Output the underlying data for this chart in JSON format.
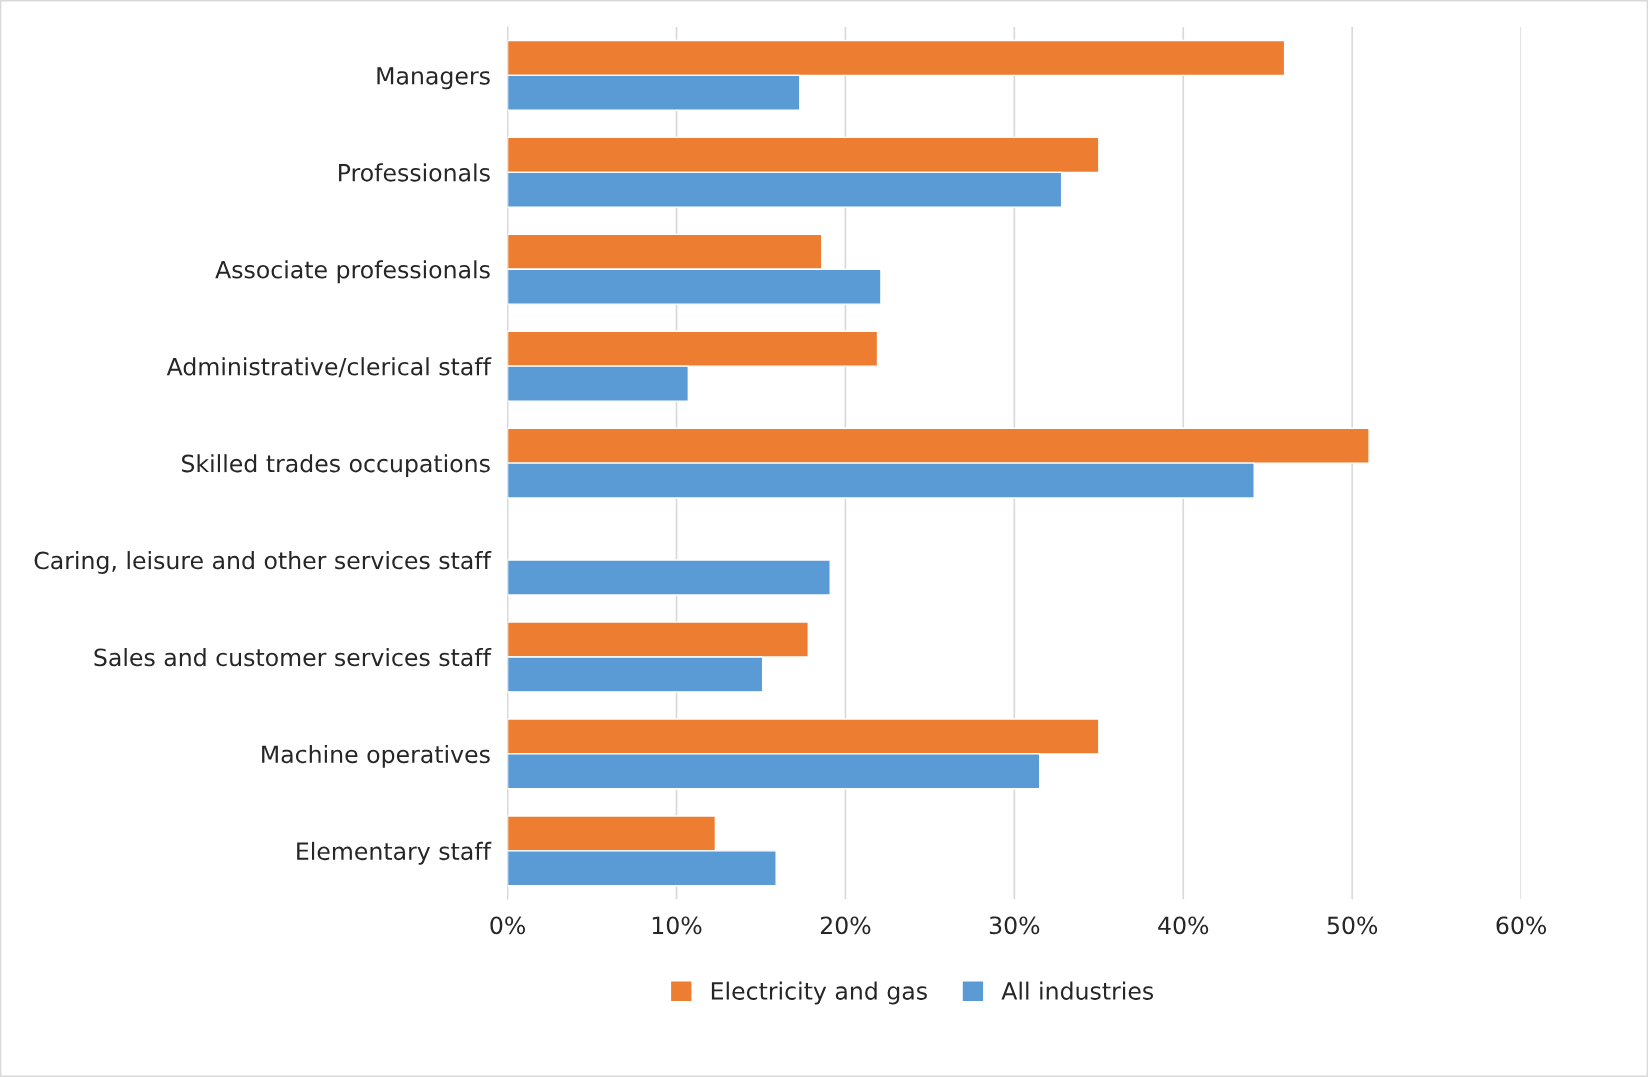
{
  "chart_data": {
    "type": "bar",
    "orientation": "horizontal",
    "categories": [
      "Managers",
      "Professionals",
      "Associate professionals",
      "Administrative/clerical staff",
      "Skilled trades occupations",
      "Caring, leisure and other services staff",
      "Sales and customer services staff",
      "Machine operatives",
      "Elementary staff"
    ],
    "series": [
      {
        "name": "Electricity and gas",
        "color": "#ed7d31",
        "values": [
          46,
          35,
          18.6,
          21.9,
          51,
          null,
          17.8,
          35,
          12.3
        ]
      },
      {
        "name": "All industries",
        "color": "#5b9bd5",
        "values": [
          17.3,
          32.8,
          22.1,
          10.7,
          44.2,
          19.1,
          15.1,
          31.5,
          15.9
        ]
      }
    ],
    "xlim": [
      0,
      60
    ],
    "xticks": [
      {
        "value": 0,
        "label": "0%"
      },
      {
        "value": 10,
        "label": "10%"
      },
      {
        "value": 20,
        "label": "20%"
      },
      {
        "value": 30,
        "label": "30%"
      },
      {
        "value": 40,
        "label": "40%"
      },
      {
        "value": 50,
        "label": "50%"
      },
      {
        "value": 60,
        "label": "60%"
      }
    ],
    "grid": "x",
    "legend": "bottom"
  }
}
